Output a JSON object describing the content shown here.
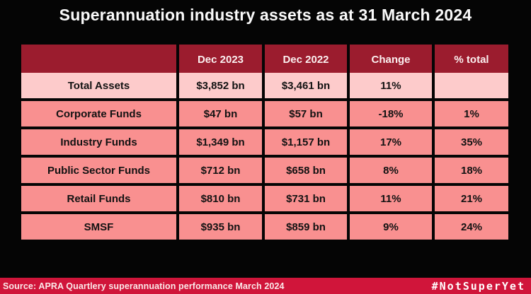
{
  "title": "Superannuation industry assets as at 31 March 2024",
  "chart_data": {
    "type": "table",
    "title": "Superannuation industry assets as at 31 March 2024",
    "columns": [
      "",
      "Dec 2023",
      "Dec 2022",
      "Change",
      "% total"
    ],
    "rows": [
      [
        "Total Assets",
        "$3,852 bn",
        "$3,461 bn",
        "11%",
        ""
      ],
      [
        "Corporate Funds",
        "$47 bn",
        "$57 bn",
        "-18%",
        "1%"
      ],
      [
        "Industry Funds",
        "$1,349 bn",
        "$1,157 bn",
        "17%",
        "35%"
      ],
      [
        "Public Sector Funds",
        "$712 bn",
        "$658 bn",
        "8%",
        "18%"
      ],
      [
        "Retail Funds",
        "$810 bn",
        "$731 bn",
        "11%",
        "21%"
      ],
      [
        "SMSF",
        "$935 bn",
        "$859 bn",
        "9%",
        "24%"
      ]
    ],
    "layout_hints": {
      "header_background": "#9B1C2E",
      "first_row_background": "#FDCBCB",
      "row_background": "#F99090",
      "grid_line_color": "#050505",
      "page_background": "#050505"
    }
  },
  "footer": {
    "source": "Source: APRA Quartlery superannuation performance March 2024",
    "hashtag": "#NotSuperYet"
  },
  "colors": {
    "background": "#050505",
    "header_maroon": "#9B1C2E",
    "row_light_pink": "#FDCBCB",
    "row_salmon": "#F99090",
    "footer_crimson": "#D0153A",
    "text_light": "#FAFAFA",
    "text_dark": "#121212"
  }
}
